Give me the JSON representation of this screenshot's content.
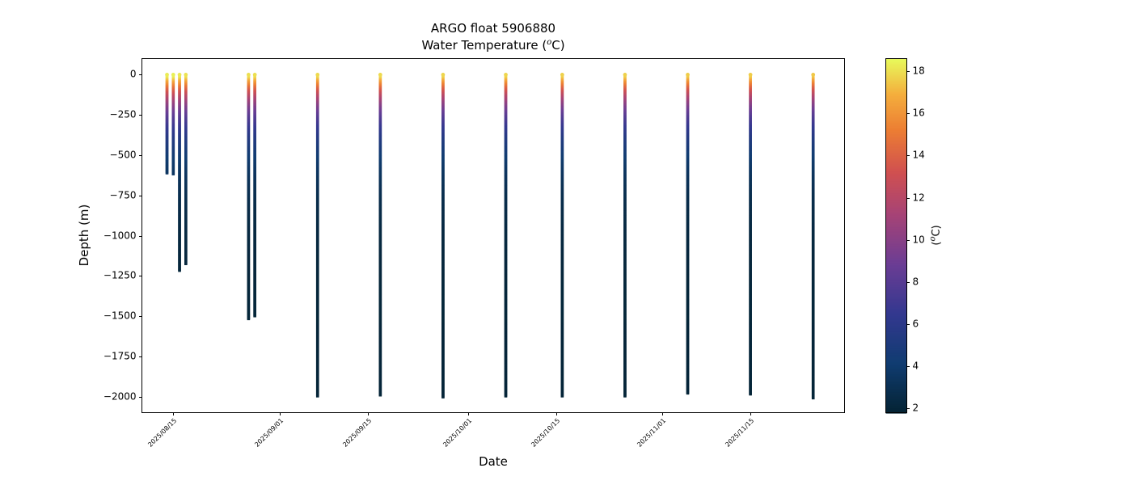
{
  "figure": {
    "background": "#ffffff"
  },
  "chart_data": {
    "type": "scatter",
    "title": "ARGO float 5906880",
    "subtitle_parts": {
      "prefix": "Water Temperature (",
      "sup": "o",
      "suffix": "C)"
    },
    "xlabel": "Date",
    "ylabel": "Depth (m)",
    "x_range": [
      "2025-08-10",
      "2025-11-30"
    ],
    "y_range_m": [
      -2100,
      100
    ],
    "y_ticks": [
      {
        "v": 0,
        "label": "0"
      },
      {
        "v": -250,
        "label": "−250"
      },
      {
        "v": -500,
        "label": "−500"
      },
      {
        "v": -750,
        "label": "−750"
      },
      {
        "v": -1000,
        "label": "−1000"
      },
      {
        "v": -1250,
        "label": "−1250"
      },
      {
        "v": -1500,
        "label": "−1500"
      },
      {
        "v": -1750,
        "label": "−1750"
      },
      {
        "v": -2000,
        "label": "−2000"
      }
    ],
    "x_ticks": [
      {
        "date": "2025-08-15",
        "label": "2025/08/15"
      },
      {
        "date": "2025-09-01",
        "label": "2025/09/01"
      },
      {
        "date": "2025-09-15",
        "label": "2025/09/15"
      },
      {
        "date": "2025-10-01",
        "label": "2025/10/01"
      },
      {
        "date": "2025-10-15",
        "label": "2025/10/15"
      },
      {
        "date": "2025-11-01",
        "label": "2025/11/01"
      },
      {
        "date": "2025-11-15",
        "label": "2025/11/15"
      }
    ],
    "colorbar": {
      "min": 1.8,
      "max": 18.6,
      "ticks": [
        {
          "v": 2,
          "label": "2"
        },
        {
          "v": 4,
          "label": "4"
        },
        {
          "v": 6,
          "label": "6"
        },
        {
          "v": 8,
          "label": "8"
        },
        {
          "v": 10,
          "label": "10"
        },
        {
          "v": 12,
          "label": "12"
        },
        {
          "v": 14,
          "label": "14"
        },
        {
          "v": 16,
          "label": "16"
        },
        {
          "v": 18,
          "label": "18"
        }
      ],
      "label_parts": {
        "prefix": "(",
        "sup": "o",
        "suffix": "C)"
      }
    },
    "colormap_stops": [
      [
        0.0,
        "#042333"
      ],
      [
        0.14,
        "#103c71"
      ],
      [
        0.28,
        "#33388f"
      ],
      [
        0.42,
        "#6b3d94"
      ],
      [
        0.56,
        "#a64376"
      ],
      [
        0.68,
        "#d05050"
      ],
      [
        0.8,
        "#ec7e33"
      ],
      [
        0.9,
        "#f4ae3d"
      ],
      [
        1.0,
        "#e8fa5b"
      ]
    ],
    "profile_model": {
      "deep_temp_C": 2.0,
      "thermocline_scale_m": 250,
      "mixed_layer_m": 15
    },
    "profiles": [
      {
        "date": "2025-08-14",
        "max_depth_m": 615,
        "surface_temp_C": 18.3
      },
      {
        "date": "2025-08-15",
        "max_depth_m": 620,
        "surface_temp_C": 18.4
      },
      {
        "date": "2025-08-16",
        "max_depth_m": 1220,
        "surface_temp_C": 18.2
      },
      {
        "date": "2025-08-17",
        "max_depth_m": 1180,
        "surface_temp_C": 18.1
      },
      {
        "date": "2025-08-27",
        "max_depth_m": 1520,
        "surface_temp_C": 18.0
      },
      {
        "date": "2025-08-28",
        "max_depth_m": 1500,
        "surface_temp_C": 18.0
      },
      {
        "date": "2025-09-07",
        "max_depth_m": 2000,
        "surface_temp_C": 17.9
      },
      {
        "date": "2025-09-17",
        "max_depth_m": 1995,
        "surface_temp_C": 17.9
      },
      {
        "date": "2025-09-27",
        "max_depth_m": 2005,
        "surface_temp_C": 17.8
      },
      {
        "date": "2025-10-07",
        "max_depth_m": 2000,
        "surface_temp_C": 17.8
      },
      {
        "date": "2025-10-16",
        "max_depth_m": 2000,
        "surface_temp_C": 17.7
      },
      {
        "date": "2025-10-26",
        "max_depth_m": 2000,
        "surface_temp_C": 17.7
      },
      {
        "date": "2025-11-05",
        "max_depth_m": 1985,
        "surface_temp_C": 17.6
      },
      {
        "date": "2025-11-15",
        "max_depth_m": 1990,
        "surface_temp_C": 17.6
      },
      {
        "date": "2025-11-25",
        "max_depth_m": 2010,
        "surface_temp_C": 17.5
      }
    ]
  }
}
